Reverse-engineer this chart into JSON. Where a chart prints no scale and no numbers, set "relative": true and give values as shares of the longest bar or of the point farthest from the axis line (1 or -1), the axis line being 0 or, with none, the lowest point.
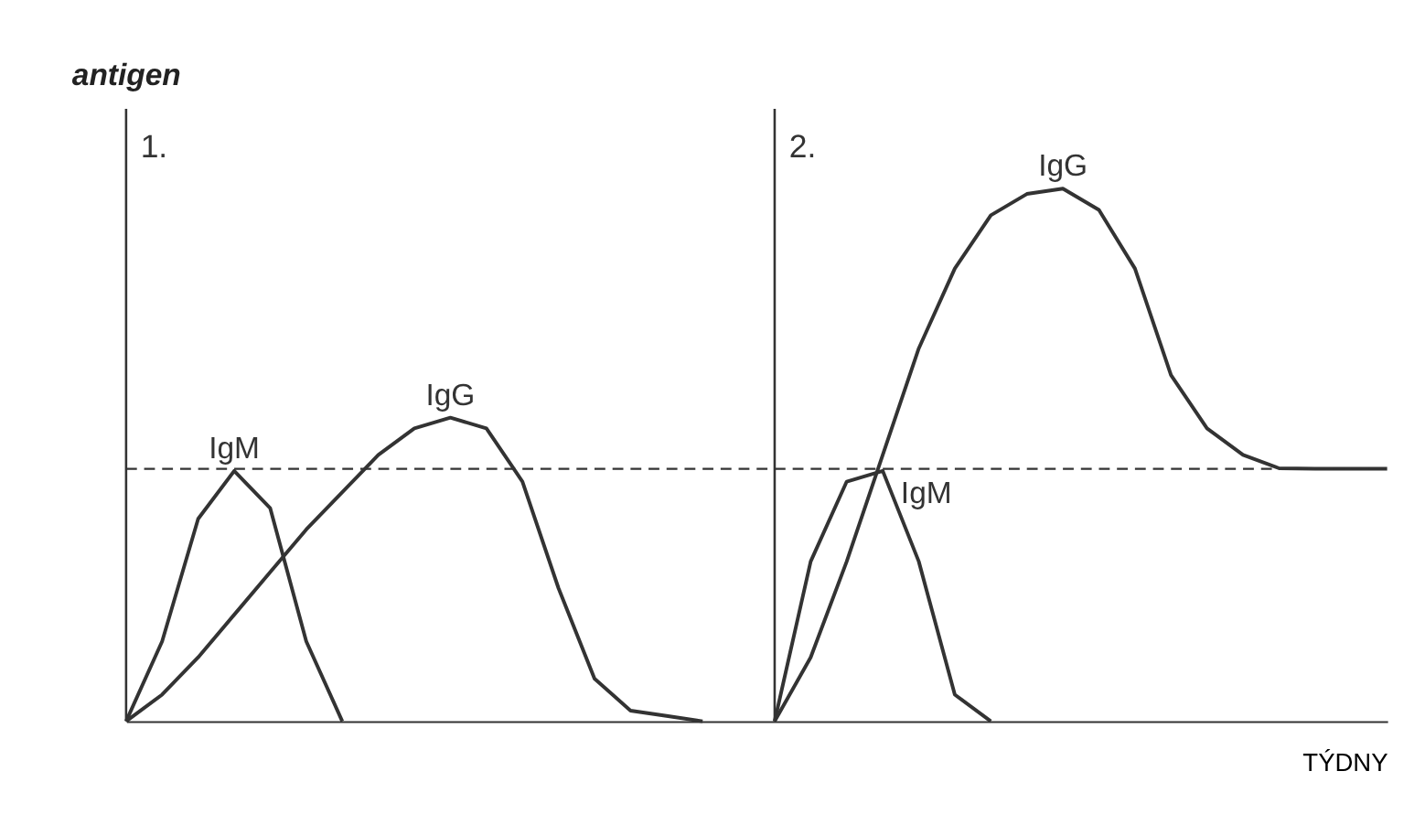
{
  "chart_data": {
    "type": "line",
    "relative": true,
    "ylabel": "antigen",
    "xlabel": "TÝDNY",
    "categories": [
      null,
      null,
      null,
      null,
      null,
      null,
      null,
      null,
      null,
      null,
      null,
      null,
      null,
      null,
      null,
      null,
      null,
      null,
      null,
      null,
      null,
      null,
      null,
      null,
      null,
      null,
      null,
      null,
      null,
      null,
      null,
      null,
      null,
      null,
      null,
      null
    ],
    "grid": false,
    "annotations": [
      "1.",
      "2."
    ],
    "series": [
      {
        "name": "IgM",
        "color": "#333333",
        "values": [
          0,
          0.15,
          0.38,
          0.47,
          0.4,
          0.15,
          0,
          null,
          null,
          null,
          null,
          null,
          null,
          null,
          null,
          null,
          null,
          null,
          null,
          null,
          null,
          null,
          null,
          null,
          null,
          null,
          null,
          null,
          null,
          null,
          null,
          null,
          null,
          null,
          null,
          null
        ]
      },
      {
        "name": "IgG",
        "color": "#333333",
        "values": [
          0,
          0.05,
          0.12,
          0.2,
          0.28,
          0.36,
          0.43,
          0.5,
          0.55,
          0.57,
          0.55,
          0.45,
          0.25,
          0.08,
          0.02,
          0.01,
          0,
          null,
          null,
          null,
          null,
          null,
          null,
          null,
          null,
          null,
          null,
          null,
          null,
          null,
          null,
          null,
          null,
          null,
          null,
          null
        ]
      },
      {
        "name": "IgM",
        "color": "#333333",
        "values": [
          null,
          null,
          null,
          null,
          null,
          null,
          null,
          null,
          null,
          null,
          null,
          null,
          null,
          null,
          null,
          null,
          null,
          null,
          0,
          0.3,
          0.45,
          0.47,
          0.3,
          0.05,
          0,
          null,
          null,
          null,
          null,
          null,
          null,
          null,
          null,
          null,
          null,
          null
        ]
      },
      {
        "name": "IgG",
        "color": "#333333",
        "values": [
          null,
          null,
          null,
          null,
          null,
          null,
          null,
          null,
          null,
          null,
          null,
          null,
          null,
          null,
          null,
          null,
          null,
          null,
          0,
          0.12,
          0.3,
          0.5,
          0.7,
          0.85,
          0.95,
          0.99,
          1,
          0.96,
          0.85,
          0.65,
          0.55,
          0.5,
          0.475,
          0.474,
          0.474,
          0.474
        ]
      }
    ],
    "ref_lines": [
      {
        "axis": "y",
        "value": 0.474,
        "line_style": "dashed",
        "color": "#333333"
      }
    ]
  }
}
